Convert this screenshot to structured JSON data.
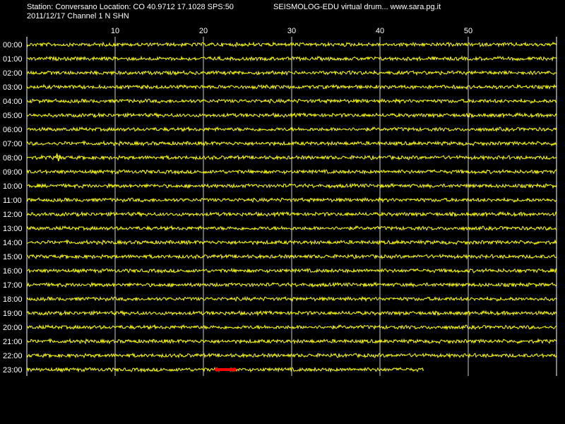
{
  "header": {
    "station_line": "Station: Conversano Location: CO 40.9712 17.1028 SPS:50",
    "app_line": "SEISMOLOG-EDU virtual drum... www.sara.pg.it",
    "date_line": "2011/12/17  Channel 1 N SHN"
  },
  "chart_data": {
    "type": "line",
    "title": "",
    "xlabel": "",
    "ylabel": "",
    "x_unit_note": "minutes within hour",
    "xlim": [
      0,
      60
    ],
    "x_ticks": [
      10,
      20,
      30,
      40,
      50
    ],
    "grid": true,
    "rows": [
      "00:00",
      "01:00",
      "02:00",
      "03:00",
      "04:00",
      "05:00",
      "06:00",
      "07:00",
      "08:00",
      "09:00",
      "10:00",
      "11:00",
      "12:00",
      "13:00",
      "14:00",
      "15:00",
      "16:00",
      "17:00",
      "18:00",
      "19:00",
      "20:00",
      "21:00",
      "22:00",
      "23:00"
    ],
    "row_end_minute": [
      60,
      60,
      60,
      60,
      60,
      60,
      60,
      60,
      60,
      60,
      60,
      60,
      60,
      60,
      60,
      60,
      60,
      60,
      60,
      60,
      60,
      60,
      60,
      45
    ],
    "events": [
      {
        "row": "08:00",
        "minute": 3.5
      }
    ],
    "current_marker": {
      "row": "23:00",
      "start_minute": 21.5,
      "end_minute": 23.5
    },
    "colors": {
      "trace": "#ffff00",
      "background": "#000000",
      "grid": "#ffffff",
      "marker": "#ff0000"
    }
  }
}
